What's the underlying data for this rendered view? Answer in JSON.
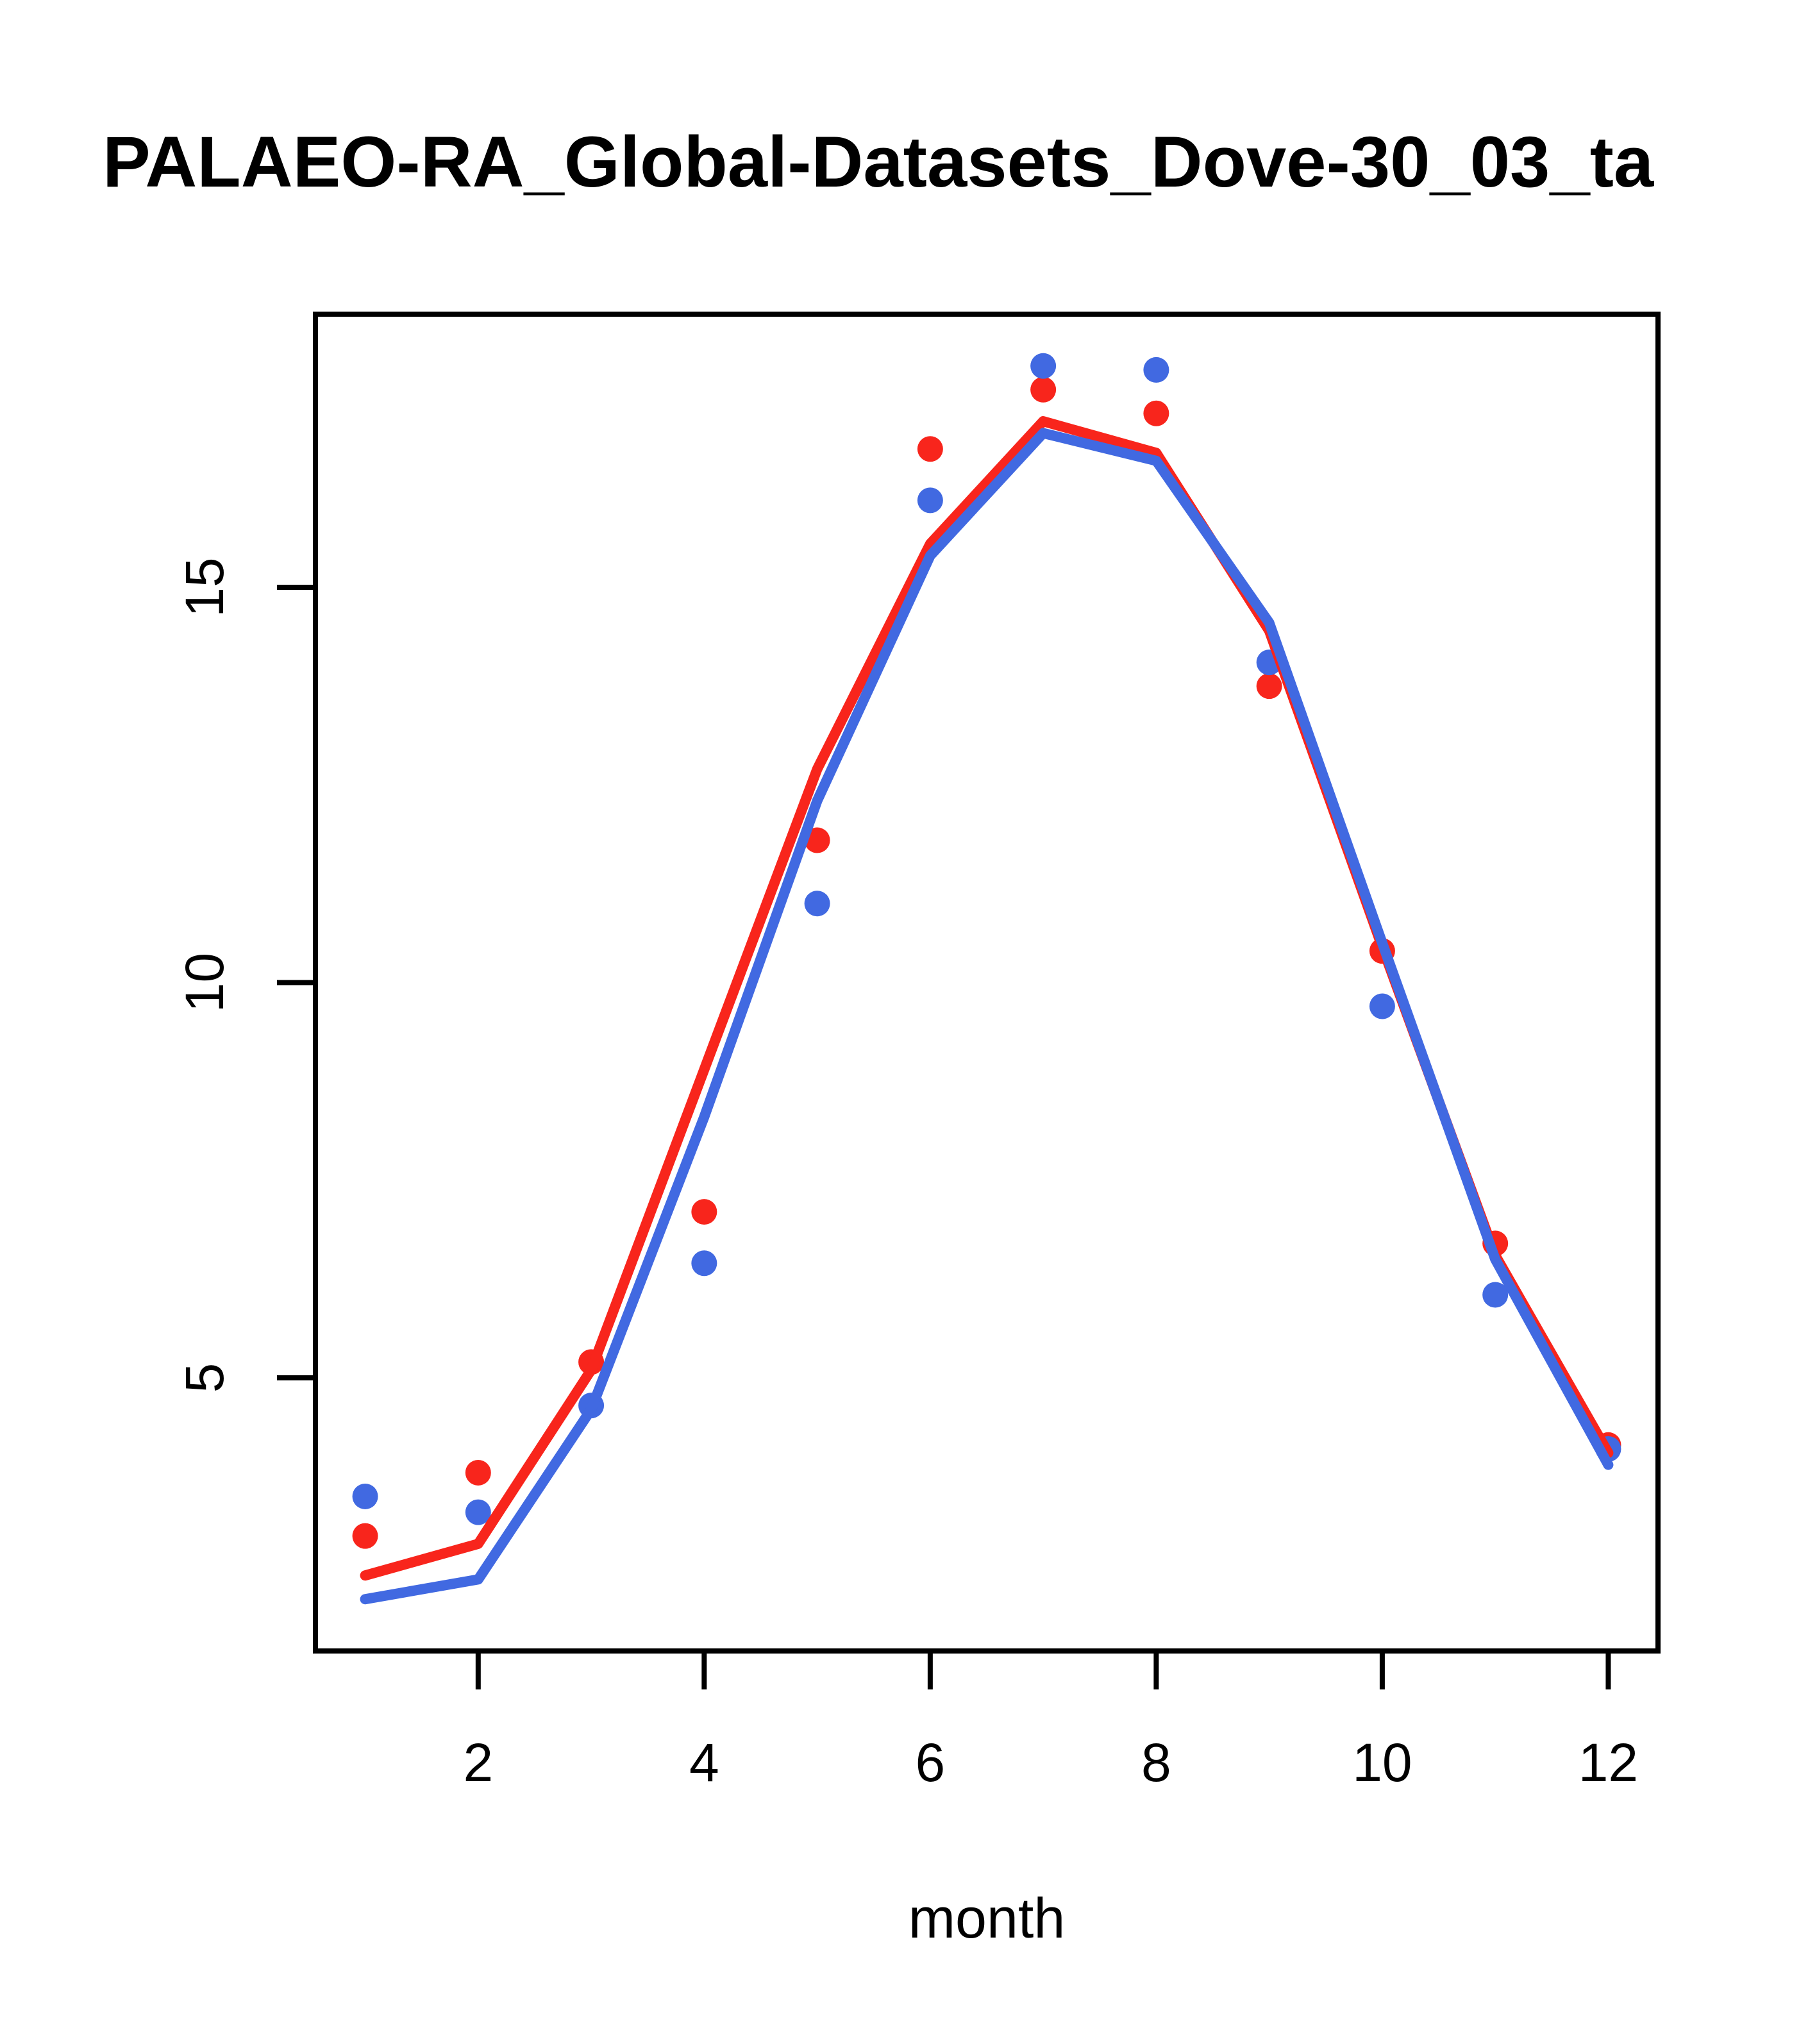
{
  "title": "PALAEO-RA_Global-Datasets_Dove-30_03_ta",
  "chart_data": {
    "type": "line",
    "title": "PALAEO-RA_Global-Datasets_Dove-30_03_ta",
    "xlabel": "month",
    "ylabel": "",
    "x": [
      1,
      2,
      3,
      4,
      5,
      6,
      7,
      8,
      9,
      10,
      11,
      12
    ],
    "x_ticks": [
      2,
      4,
      6,
      8,
      10,
      12
    ],
    "y_ticks": [
      5,
      10,
      15
    ],
    "xlim": [
      0.56,
      12.44
    ],
    "ylim": [
      1.545,
      18.455
    ],
    "grid": false,
    "legend_position": "none",
    "colors": {
      "red": "#f8251c",
      "blue": "#4169e1",
      "axis": "#000000"
    },
    "series": [
      {
        "name": "red-points",
        "style": "points",
        "color": "#f8251c",
        "values": [
          3.0,
          3.8,
          5.2,
          7.1,
          11.8,
          16.75,
          17.5,
          17.2,
          13.75,
          10.4,
          6.7,
          4.15
        ]
      },
      {
        "name": "blue-points",
        "style": "points",
        "color": "#4169e1",
        "values": [
          3.5,
          3.3,
          4.65,
          6.45,
          11.0,
          16.1,
          17.8,
          17.75,
          14.05,
          9.7,
          6.05,
          4.1
        ]
      },
      {
        "name": "red-line",
        "style": "line",
        "color": "#f8251c",
        "values": [
          2.5,
          2.9,
          5.1,
          8.9,
          12.7,
          15.55,
          17.1,
          16.7,
          14.45,
          10.45,
          6.55,
          4.05
        ]
      },
      {
        "name": "blue-line",
        "style": "line",
        "color": "#4169e1",
        "values": [
          2.2,
          2.45,
          4.6,
          8.3,
          12.3,
          15.4,
          16.95,
          16.6,
          14.55,
          10.5,
          6.5,
          3.9
        ]
      }
    ]
  }
}
